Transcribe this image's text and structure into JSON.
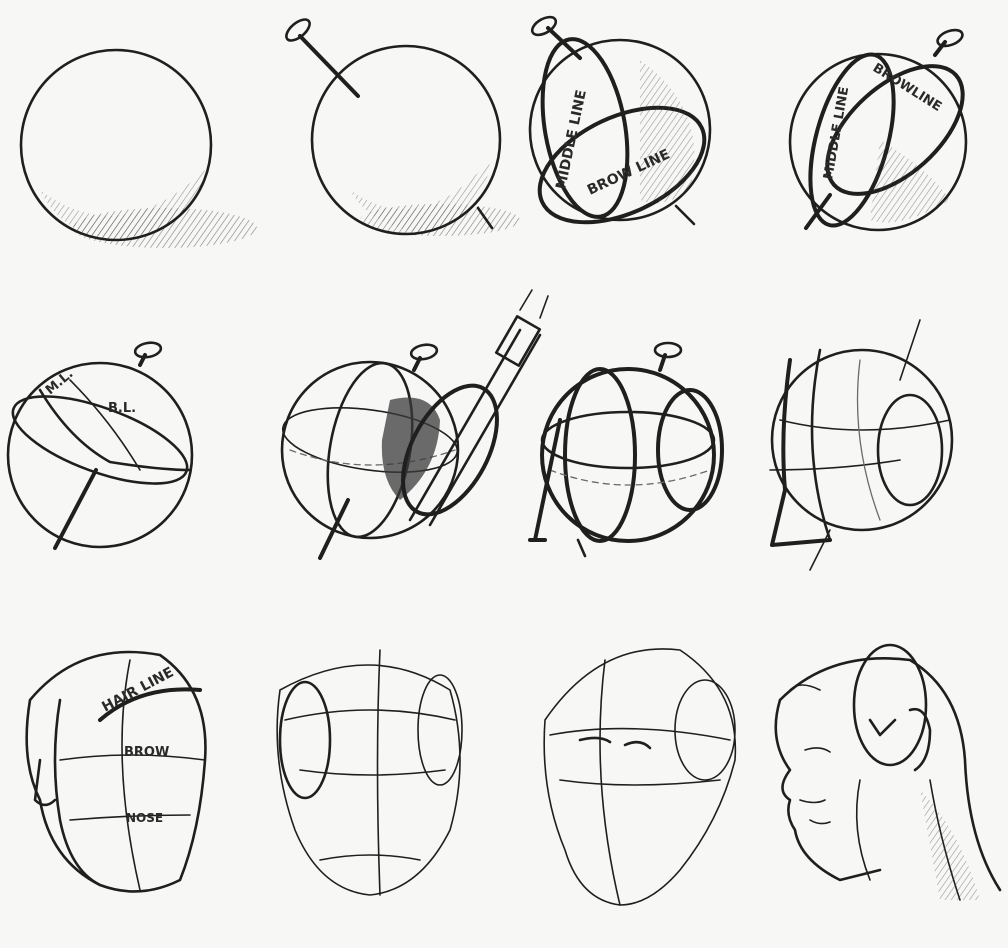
{
  "labels": {
    "s3_middle": "MIDDLE LINE",
    "s3_brow": "BROW LINE",
    "s4_middle": "MIDDLE LINE",
    "s4_brow": "BROWLINE",
    "s5_ml": "M.L.",
    "s5_bl": "B.L.",
    "s9_hair": "HAIR LINE",
    "s9_brow": "BROW",
    "s9_nose": "NOSE"
  },
  "ink_color": "#1f1f1f",
  "paper_color": "#f7f7f5"
}
